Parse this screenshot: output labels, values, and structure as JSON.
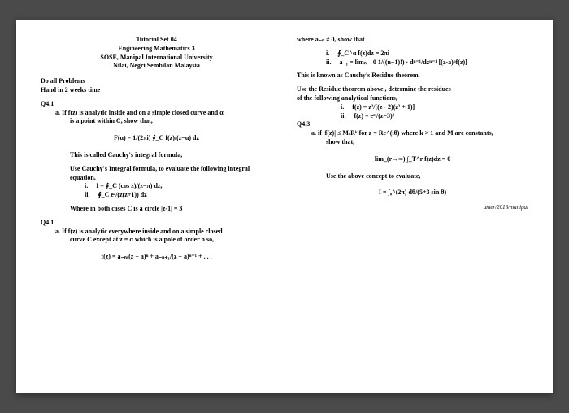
{
  "header": {
    "line1": "Tutorial Set 04",
    "line2": "Engineering Mathematics 3",
    "line3": "SOSE, Manipal International University",
    "line4": "Nilai, Negri Sembilan Malaysia"
  },
  "left": {
    "instr1": "Do all Problems",
    "instr2": "Hand in 2 weeks time",
    "q41": "Q4.1",
    "q41a_label": "a.",
    "q41a_text1": "If f(z) is analytic inside and on a simple closed curve and α",
    "q41a_text2": "is a point within C, show that,",
    "eq1": "F(α) = 1/(2πi) ∮_C  f(z)/(z−α) dz",
    "cauchy_integral": "This is called Cauchy's integral formula,",
    "use_cauchy": "Use Cauchy's Integral formula, to evaluate the following integral equation,",
    "eq_i_label": "i.",
    "eq_i": "I = ∮_C  (cos z)/(z−π) dz,",
    "eq_ii_label": "ii.",
    "eq_ii": "∮_C  eᶻ/(z(z+1)) dz",
    "where_circle": "Where in both cases C is a circle |z-1| = 3",
    "q41b": "Q4.1",
    "q41b_label": "a.",
    "q41b_text1": "If f(z) is analytic everywhere inside and on a simple closed",
    "q41b_text2": "curve C except at z = α which is a pole of order n so,",
    "eq_series": "f(z) = a₋ₙ/(z − a)ⁿ + a₋ₙ₊₁/(z − a)ⁿ⁻¹ + . . ."
  },
  "right": {
    "where_an": "where a₋ₙ ≠ 0,  show that",
    "r_i_label": "i.",
    "r_i": "∮_C^α f(z)dz = 2πi",
    "r_ii_label": "ii.",
    "r_ii": "a₋₁ = limₙ→0  1/((n−1)!) · dⁿ⁻¹/dzⁿ⁻¹ [(z-a)ⁿf(z)]",
    "residue_thm": "This is known as Cauchy's Residue theorem.",
    "use_residue1": "Use the Residue theorem above , determine the residues",
    "use_residue2": "of the following analytical functions,",
    "f_i_label": "i.",
    "f_i": "f(z) = z²/[(z - 2)(z² + 1)]",
    "f_ii_label": "ii.",
    "f_ii": "f(z) = eᶻᵗ/(z−3)²",
    "q43": "Q4.3",
    "q43a_label": "a.",
    "q43a_text1": "if |f(z)| ≤ M/Rᵏ for z = Re^(iθ) where k > 1 and M are constants,",
    "q43a_text2": "show that,",
    "lim_eq": "lim_(r→∞) ∫_T^r f(z)dz = 0",
    "use_concept": "Use the above concept to evaluate,",
    "final_eq": "I = ∫₀^(2π)  dθ/(5+3 sin θ)",
    "footer": "amer/2016/manipal"
  }
}
